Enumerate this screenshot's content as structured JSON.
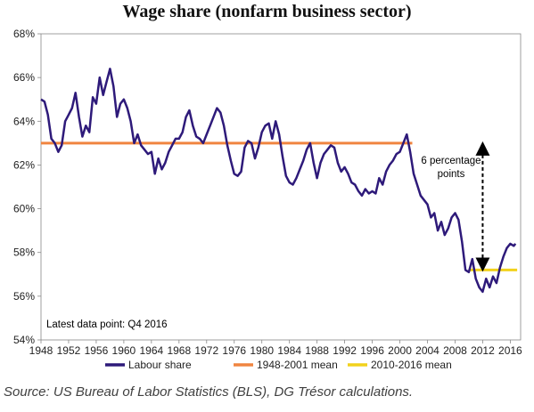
{
  "chart_data": {
    "type": "line",
    "title": "Wage share (nonfarm business sector)",
    "xlabel": "",
    "ylabel": "",
    "x_range": [
      1948,
      2017.5
    ],
    "y_range": [
      54,
      68
    ],
    "x_ticks": [
      1948,
      1952,
      1956,
      1960,
      1964,
      1968,
      1972,
      1976,
      1980,
      1984,
      1988,
      1992,
      1996,
      2000,
      2004,
      2008,
      2012,
      2016
    ],
    "y_ticks": [
      {
        "value": 54,
        "label": "54%"
      },
      {
        "value": 56,
        "label": "56%"
      },
      {
        "value": 58,
        "label": "58%"
      },
      {
        "value": 60,
        "label": "60%"
      },
      {
        "value": 62,
        "label": "62%"
      },
      {
        "value": 64,
        "label": "64%"
      },
      {
        "value": 66,
        "label": "66%"
      },
      {
        "value": 68,
        "label": "68%"
      }
    ],
    "grid": false,
    "legend_position": "bottom",
    "series": [
      {
        "name": "Labour share",
        "color": "#2e1a7a",
        "x": [
          1948.0,
          1948.5,
          1949.0,
          1949.5,
          1950.0,
          1950.5,
          1951.0,
          1951.5,
          1952.0,
          1952.5,
          1953.0,
          1953.5,
          1954.0,
          1954.5,
          1955.0,
          1955.5,
          1956.0,
          1956.5,
          1957.0,
          1957.5,
          1958.0,
          1958.5,
          1959.0,
          1959.5,
          1960.0,
          1960.5,
          1961.0,
          1961.5,
          1962.0,
          1962.5,
          1963.0,
          1963.5,
          1964.0,
          1964.5,
          1965.0,
          1965.5,
          1966.0,
          1966.5,
          1967.0,
          1967.5,
          1968.0,
          1968.5,
          1969.0,
          1969.5,
          1970.0,
          1970.5,
          1971.0,
          1971.5,
          1972.0,
          1972.5,
          1973.0,
          1973.5,
          1974.0,
          1974.5,
          1975.0,
          1975.5,
          1976.0,
          1976.5,
          1977.0,
          1977.5,
          1978.0,
          1978.5,
          1979.0,
          1979.5,
          1980.0,
          1980.5,
          1981.0,
          1981.5,
          1982.0,
          1982.5,
          1983.0,
          1983.5,
          1984.0,
          1984.5,
          1985.0,
          1985.5,
          1986.0,
          1986.5,
          1987.0,
          1987.5,
          1988.0,
          1988.5,
          1989.0,
          1989.5,
          1990.0,
          1990.5,
          1991.0,
          1991.5,
          1992.0,
          1992.5,
          1993.0,
          1993.5,
          1994.0,
          1994.5,
          1995.0,
          1995.5,
          1996.0,
          1996.5,
          1997.0,
          1997.5,
          1998.0,
          1998.5,
          1999.0,
          1999.5,
          2000.0,
          2000.5,
          2001.0,
          2001.5,
          2002.0,
          2002.5,
          2003.0,
          2003.5,
          2004.0,
          2004.5,
          2005.0,
          2005.5,
          2006.0,
          2006.5,
          2007.0,
          2007.5,
          2008.0,
          2008.5,
          2009.0,
          2009.5,
          2010.0,
          2010.5,
          2011.0,
          2011.5,
          2012.0,
          2012.5,
          2013.0,
          2013.5,
          2014.0,
          2014.5,
          2015.0,
          2015.5,
          2016.0,
          2016.5,
          2016.75
        ],
        "y": [
          65.0,
          64.9,
          64.3,
          63.2,
          63.0,
          62.6,
          62.9,
          64.0,
          64.3,
          64.6,
          65.3,
          64.2,
          63.3,
          63.8,
          63.5,
          65.1,
          64.8,
          66.0,
          65.2,
          65.8,
          66.4,
          65.6,
          64.2,
          64.8,
          65.0,
          64.6,
          64.0,
          63.0,
          63.4,
          62.9,
          62.7,
          62.5,
          62.6,
          61.6,
          62.3,
          61.8,
          62.1,
          62.6,
          62.9,
          63.2,
          63.2,
          63.5,
          64.2,
          64.5,
          63.8,
          63.3,
          63.2,
          63.0,
          63.4,
          63.8,
          64.2,
          64.6,
          64.4,
          63.8,
          62.9,
          62.2,
          61.6,
          61.5,
          61.7,
          62.8,
          63.1,
          63.0,
          62.3,
          62.8,
          63.5,
          63.8,
          63.9,
          63.2,
          64.0,
          63.4,
          62.4,
          61.5,
          61.2,
          61.1,
          61.4,
          61.8,
          62.2,
          62.7,
          63.0,
          62.1,
          61.4,
          62.1,
          62.5,
          62.7,
          62.9,
          62.8,
          62.1,
          61.7,
          61.9,
          61.6,
          61.2,
          61.1,
          60.8,
          60.6,
          60.9,
          60.7,
          60.8,
          60.7,
          61.4,
          61.1,
          61.7,
          62.0,
          62.2,
          62.5,
          62.6,
          63.0,
          63.4,
          62.6,
          61.6,
          61.1,
          60.6,
          60.4,
          60.2,
          59.6,
          59.8,
          59.0,
          59.4,
          58.8,
          59.1,
          59.6,
          59.8,
          59.5,
          58.5,
          57.2,
          57.1,
          57.7,
          56.8,
          56.4,
          56.2,
          56.8,
          56.4,
          56.9,
          56.6,
          57.3,
          57.8,
          58.2,
          58.4,
          58.3,
          58.4
        ]
      },
      {
        "name": "1948-2001 mean",
        "color": "#f08540",
        "x": [
          1948,
          2001.8
        ],
        "y": [
          63.0,
          63.0
        ]
      },
      {
        "name": "2010-2016 mean",
        "color": "#f2d21c",
        "x": [
          2010,
          2017
        ],
        "y": [
          57.2,
          57.2
        ]
      }
    ],
    "annotations": [
      {
        "text": "6 percentage points",
        "type": "double-arrow",
        "x": 2012,
        "y_from": 57.2,
        "y_to": 63.0
      },
      {
        "text": "Latest data point: Q4 2016"
      }
    ],
    "source": "Source: US Bureau of Labor Statistics (BLS), DG Trésor calculations."
  }
}
